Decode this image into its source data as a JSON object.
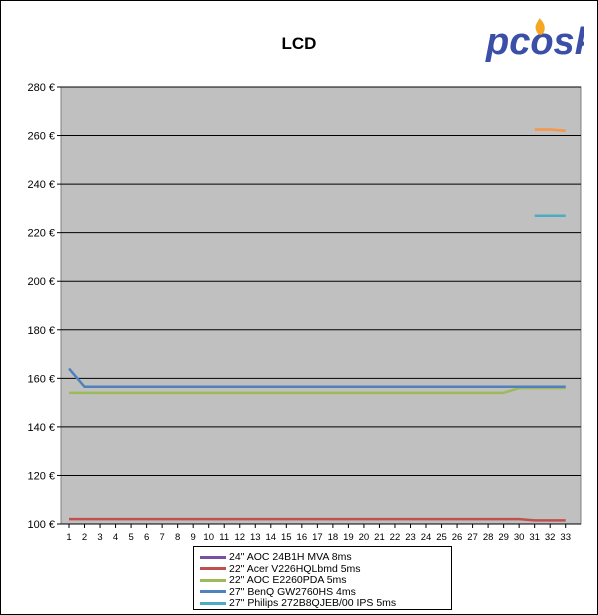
{
  "title": "LCD",
  "logo_text": "pcosk",
  "chart_data": {
    "type": "line",
    "title": "LCD",
    "xlabel": "",
    "ylabel": "",
    "x": [
      1,
      2,
      3,
      4,
      5,
      6,
      7,
      8,
      9,
      10,
      11,
      12,
      13,
      14,
      15,
      16,
      17,
      18,
      19,
      20,
      21,
      22,
      23,
      24,
      25,
      26,
      27,
      28,
      29,
      30,
      31,
      32,
      33
    ],
    "ylim": [
      100,
      280
    ],
    "yticks": [
      100,
      120,
      140,
      160,
      180,
      200,
      220,
      240,
      260,
      280
    ],
    "y_unit": "€",
    "grid": true,
    "legend_position": "bottom",
    "series": [
      {
        "name": "24\" AOC 24B1H MVA 8ms",
        "color": "#7b4fa0",
        "values": [
          null,
          null,
          null,
          null,
          null,
          null,
          null,
          null,
          null,
          null,
          null,
          null,
          null,
          null,
          null,
          null,
          null,
          null,
          null,
          null,
          null,
          null,
          null,
          null,
          null,
          null,
          null,
          null,
          null,
          null,
          null,
          null,
          null
        ]
      },
      {
        "name": "22\" Acer V226HQLbmd 5ms",
        "color": "#c0504d",
        "values": [
          102,
          102,
          102,
          102,
          102,
          102,
          102,
          102,
          102,
          102,
          102,
          102,
          102,
          102,
          102,
          102,
          102,
          102,
          102,
          102,
          102,
          102,
          102,
          102,
          102,
          102,
          102,
          102,
          102,
          102,
          101.5,
          101.5,
          101.5
        ]
      },
      {
        "name": "22\" AOC E2260PDA 5ms",
        "color": "#9bbb59",
        "values": [
          154,
          154,
          154,
          154,
          154,
          154,
          154,
          154,
          154,
          154,
          154,
          154,
          154,
          154,
          154,
          154,
          154,
          154,
          154,
          154,
          154,
          154,
          154,
          154,
          154,
          154,
          154,
          154,
          154,
          156,
          156,
          156,
          156
        ]
      },
      {
        "name": "27\" BenQ GW2760HS 4ms",
        "color": "#4f81bd",
        "values": [
          164,
          156.5,
          156.5,
          156.5,
          156.5,
          156.5,
          156.5,
          156.5,
          156.5,
          156.5,
          156.5,
          156.5,
          156.5,
          156.5,
          156.5,
          156.5,
          156.5,
          156.5,
          156.5,
          156.5,
          156.5,
          156.5,
          156.5,
          156.5,
          156.5,
          156.5,
          156.5,
          156.5,
          156.5,
          156.5,
          156.5,
          156.5,
          156.5
        ]
      },
      {
        "name": "27\" Philips 272B8QJEB/00 IPS 5ms",
        "color": "#4bacc6",
        "values": [
          null,
          null,
          null,
          null,
          null,
          null,
          null,
          null,
          null,
          null,
          null,
          null,
          null,
          null,
          null,
          null,
          null,
          null,
          null,
          null,
          null,
          null,
          null,
          null,
          null,
          null,
          null,
          null,
          null,
          null,
          227,
          227,
          227
        ]
      },
      {
        "name": "",
        "color": "#f79646",
        "values": [
          null,
          null,
          null,
          null,
          null,
          null,
          null,
          null,
          null,
          null,
          null,
          null,
          null,
          null,
          null,
          null,
          null,
          null,
          null,
          null,
          null,
          null,
          null,
          null,
          null,
          null,
          null,
          null,
          null,
          null,
          262.5,
          262.5,
          262
        ]
      }
    ]
  }
}
